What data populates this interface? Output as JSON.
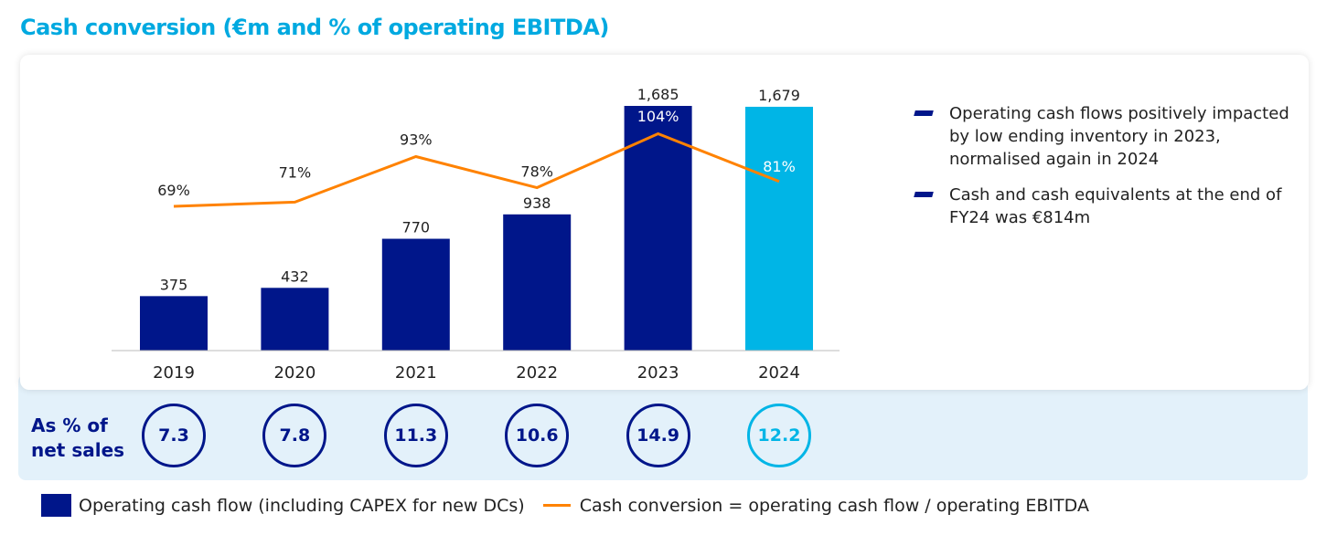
{
  "chart_data": {
    "type": "bar",
    "title": "Cash conversion (€m and % of operating EBITDA)",
    "categories": [
      "2019",
      "2020",
      "2021",
      "2022",
      "2023",
      "2024"
    ],
    "series": [
      {
        "name": "Operating cash flow (including CAPEX for new DCs)",
        "type": "bar",
        "values": [
          375,
          432,
          770,
          938,
          1685,
          1679
        ],
        "labels": [
          "375",
          "432",
          "770",
          "938",
          "1,685",
          "1,679"
        ],
        "colors": [
          "#00168a",
          "#00168a",
          "#00168a",
          "#00168a",
          "#00168a",
          "#00b5e6"
        ]
      },
      {
        "name": "Cash conversion = operating cash flow / operating EBITDA",
        "type": "line",
        "values": [
          69,
          71,
          93,
          78,
          104,
          81
        ],
        "labels": [
          "69%",
          "71%",
          "93%",
          "78%",
          "104%",
          "81%"
        ],
        "color": "#ff8200"
      }
    ],
    "net_sales_label": "As % of net sales",
    "net_sales_pct": [
      "7.3",
      "7.8",
      "11.3",
      "10.6",
      "14.9",
      "12.2"
    ],
    "ylim": [
      0,
      1685
    ]
  },
  "notes": [
    "Operating cash flows positively impacted by low ending inventory in 2023, normalised again in 2024",
    "Cash and cash equivalents at the end of FY24 was €814m"
  ]
}
